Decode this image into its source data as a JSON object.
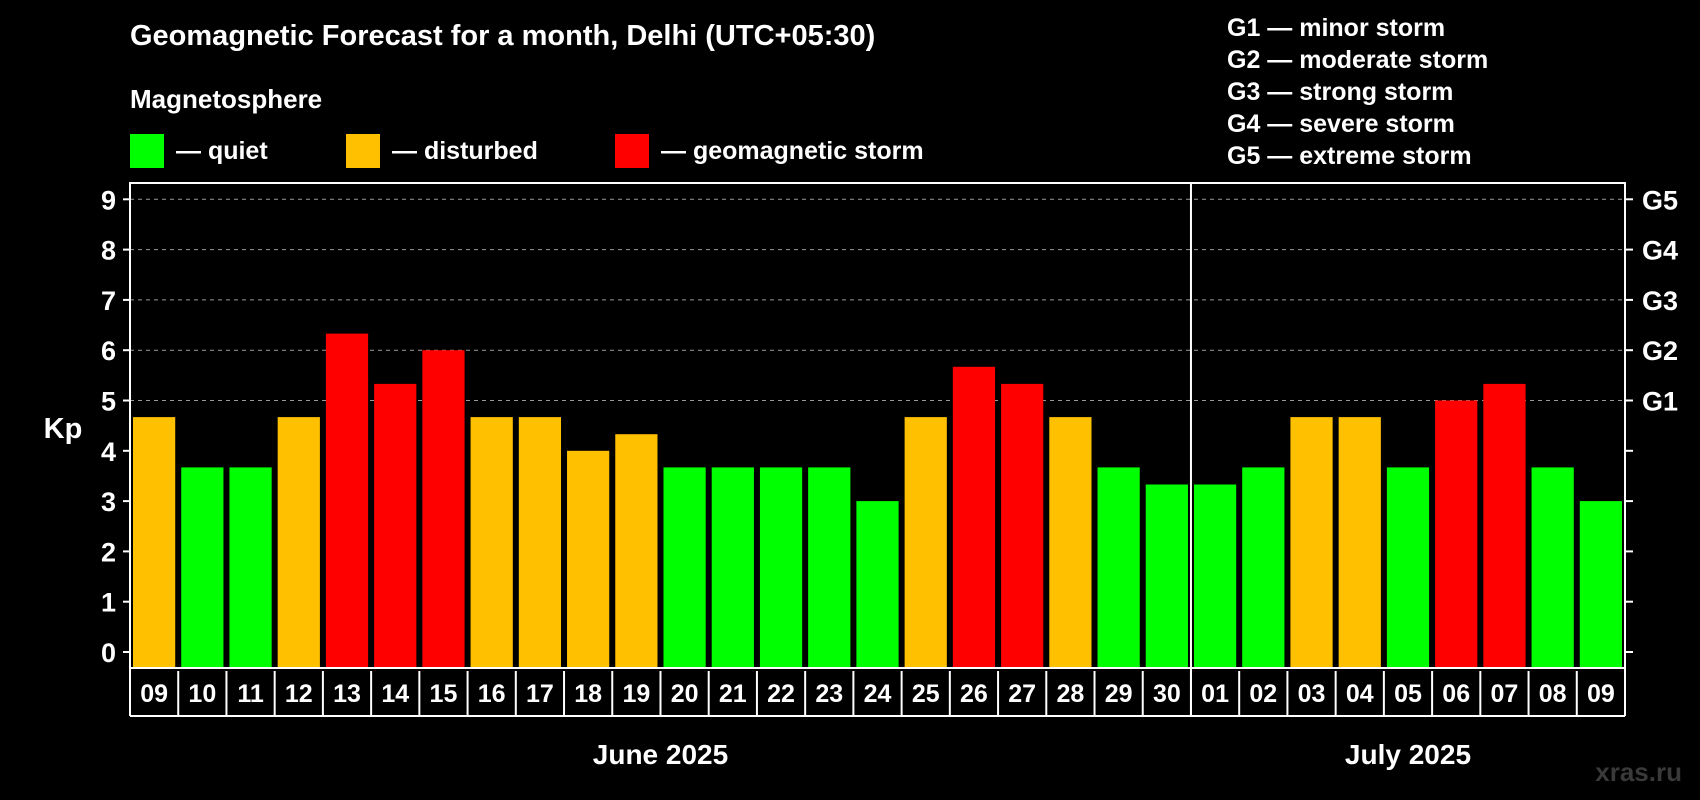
{
  "chart_data": {
    "type": "bar",
    "title": "Geomagnetic Forecast for a month, Delhi (UTC+05:30)",
    "subtitle": "Magnetosphere",
    "ylabel": "Kp",
    "ylim": [
      0,
      9
    ],
    "yticks": [
      "0",
      "1",
      "2",
      "3",
      "4",
      "5",
      "6",
      "7",
      "8",
      "9"
    ],
    "right_axis_labels": [
      {
        "kp": 5,
        "label": "G1"
      },
      {
        "kp": 6,
        "label": "G2"
      },
      {
        "kp": 7,
        "label": "G3"
      },
      {
        "kp": 8,
        "label": "G4"
      },
      {
        "kp": 9,
        "label": "G5"
      }
    ],
    "categories": [
      "09",
      "10",
      "11",
      "12",
      "13",
      "14",
      "15",
      "16",
      "17",
      "18",
      "19",
      "20",
      "21",
      "22",
      "23",
      "24",
      "25",
      "26",
      "27",
      "28",
      "29",
      "30",
      "01",
      "02",
      "03",
      "04",
      "05",
      "06",
      "07",
      "08",
      "09"
    ],
    "values": [
      4.67,
      3.67,
      3.67,
      4.67,
      6.33,
      5.33,
      6.0,
      4.67,
      4.67,
      4.0,
      4.33,
      3.67,
      3.67,
      3.67,
      3.67,
      3.0,
      4.67,
      5.67,
      5.33,
      4.67,
      3.67,
      3.33,
      3.33,
      3.67,
      4.67,
      4.67,
      3.67,
      5.0,
      5.33,
      3.67,
      3.0
    ],
    "status": [
      "disturbed",
      "quiet",
      "quiet",
      "disturbed",
      "storm",
      "storm",
      "storm",
      "disturbed",
      "disturbed",
      "disturbed",
      "disturbed",
      "quiet",
      "quiet",
      "quiet",
      "quiet",
      "quiet",
      "disturbed",
      "storm",
      "storm",
      "disturbed",
      "quiet",
      "quiet",
      "quiet",
      "quiet",
      "disturbed",
      "disturbed",
      "quiet",
      "storm",
      "storm",
      "quiet",
      "quiet"
    ],
    "months": [
      {
        "label": "June 2025",
        "first_index": 0,
        "last_index": 21
      },
      {
        "label": "July 2025",
        "first_index": 22,
        "last_index": 30
      }
    ],
    "grid": "dashed at 5-9",
    "legend_position": "top"
  },
  "legend": {
    "items": [
      {
        "key": "quiet",
        "label": "— quiet",
        "color": "#00ff00"
      },
      {
        "key": "disturbed",
        "label": "— disturbed",
        "color": "#ffc000"
      },
      {
        "key": "storm",
        "label": "— geomagnetic storm",
        "color": "#ff0000"
      }
    ]
  },
  "g_scale": [
    "G1 — minor storm",
    "G2 — moderate storm",
    "G3 — strong storm",
    "G4 — severe storm",
    "G5 — extreme storm"
  ],
  "watermark": "xras.ru"
}
